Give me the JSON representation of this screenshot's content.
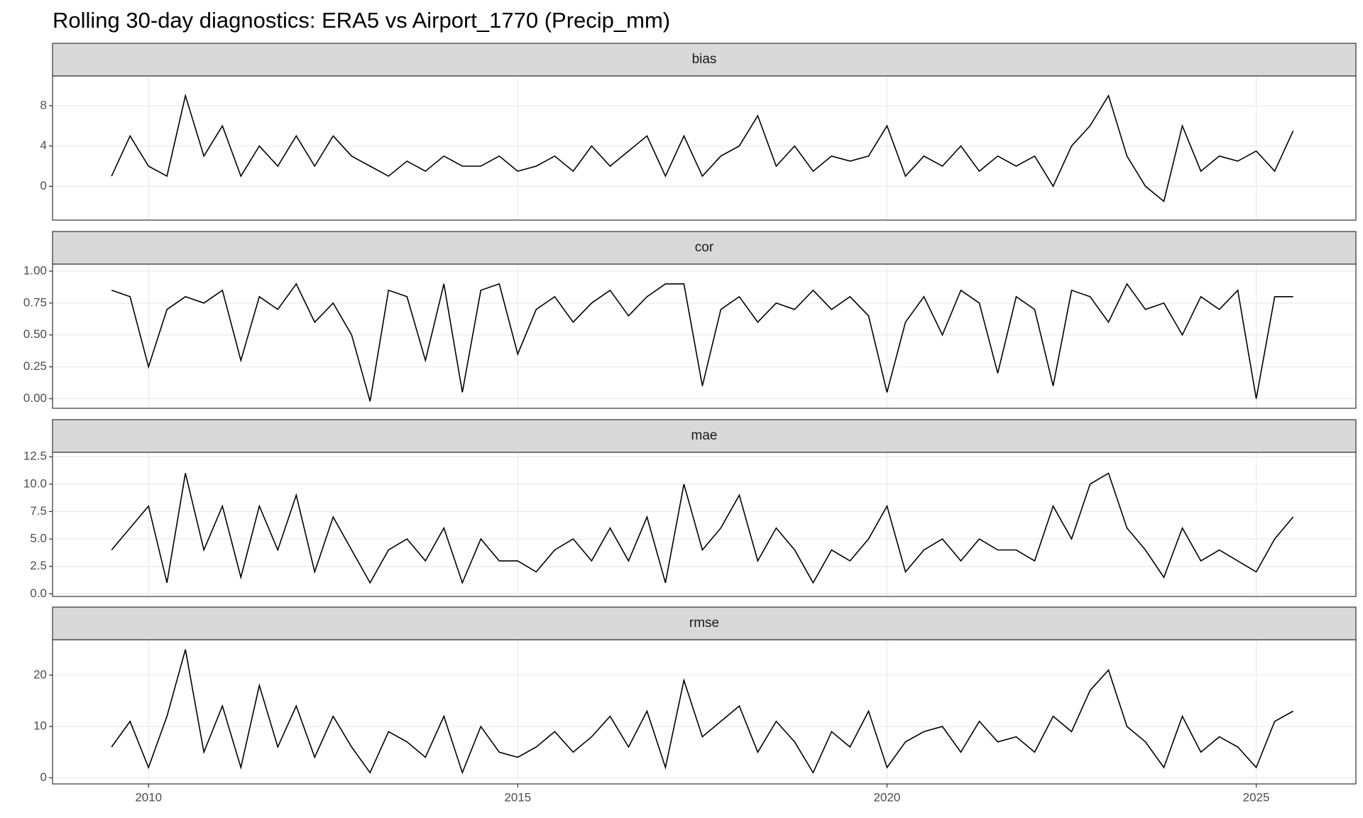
{
  "title": "Rolling 30-day diagnostics: ERA5 vs Airport_1770 (Precip_mm)",
  "chart_data": [
    {
      "type": "line",
      "title": "bias",
      "color": "#000000",
      "grid": true,
      "x": [
        2009.5,
        2009.75,
        2010,
        2010.25,
        2010.5,
        2010.75,
        2011,
        2011.25,
        2011.5,
        2011.75,
        2012,
        2012.25,
        2012.5,
        2012.75,
        2013,
        2013.25,
        2013.5,
        2013.75,
        2014,
        2014.25,
        2014.5,
        2014.75,
        2015,
        2015.25,
        2015.5,
        2015.75,
        2016,
        2016.25,
        2016.5,
        2016.75,
        2017,
        2017.25,
        2017.5,
        2017.75,
        2018,
        2018.25,
        2018.5,
        2018.75,
        2019,
        2019.25,
        2019.5,
        2019.75,
        2020,
        2020.25,
        2020.5,
        2020.75,
        2021,
        2021.25,
        2021.5,
        2021.75,
        2022,
        2022.25,
        2022.5,
        2022.75,
        2023,
        2023.25,
        2023.5,
        2023.75,
        2024,
        2024.25,
        2024.5,
        2024.75,
        2025,
        2025.25,
        2025.5
      ],
      "values": [
        1,
        5,
        2,
        1,
        9,
        3,
        6,
        1,
        4,
        2,
        5,
        2,
        5,
        3,
        2,
        1,
        2.5,
        1.5,
        3,
        2,
        2,
        3,
        1.5,
        2,
        3,
        1.5,
        4,
        2,
        3.5,
        5,
        1,
        5,
        1,
        3,
        4,
        7,
        2,
        4,
        1.5,
        3,
        2.5,
        3,
        6,
        1,
        3,
        2,
        4,
        1.5,
        3,
        2,
        3,
        0,
        4,
        6,
        9,
        3,
        0,
        -1.5,
        6,
        1.5,
        3,
        2.5,
        3.5,
        1.5,
        5.5
      ],
      "xlim": [
        2008.7,
        2026.35
      ],
      "xticks": [
        2010,
        2015,
        2020,
        2025
      ],
      "ylim": [
        -3.36,
        10.95
      ],
      "yticks": [
        0,
        4,
        8
      ]
    },
    {
      "type": "line",
      "title": "cor",
      "color": "#000000",
      "grid": true,
      "x": [
        2009.5,
        2009.75,
        2010,
        2010.25,
        2010.5,
        2010.75,
        2011,
        2011.25,
        2011.5,
        2011.75,
        2012,
        2012.25,
        2012.5,
        2012.75,
        2013,
        2013.25,
        2013.5,
        2013.75,
        2014,
        2014.25,
        2014.5,
        2014.75,
        2015,
        2015.25,
        2015.5,
        2015.75,
        2016,
        2016.25,
        2016.5,
        2016.75,
        2017,
        2017.25,
        2017.5,
        2017.75,
        2018,
        2018.25,
        2018.5,
        2018.75,
        2019,
        2019.25,
        2019.5,
        2019.75,
        2020,
        2020.25,
        2020.5,
        2020.75,
        2021,
        2021.25,
        2021.5,
        2021.75,
        2022,
        2022.25,
        2022.5,
        2022.75,
        2023,
        2023.25,
        2023.5,
        2023.75,
        2024,
        2024.25,
        2024.5,
        2024.75,
        2025,
        2025.25,
        2025.5
      ],
      "values": [
        0.85,
        0.8,
        0.25,
        0.7,
        0.8,
        0.75,
        0.85,
        0.3,
        0.8,
        0.7,
        0.9,
        0.6,
        0.75,
        0.5,
        -0.02,
        0.85,
        0.8,
        0.3,
        0.9,
        0.05,
        0.85,
        0.9,
        0.35,
        0.7,
        0.8,
        0.6,
        0.75,
        0.85,
        0.65,
        0.8,
        0.9,
        0.9,
        0.1,
        0.7,
        0.8,
        0.6,
        0.75,
        0.7,
        0.85,
        0.7,
        0.8,
        0.65,
        0.05,
        0.6,
        0.8,
        0.5,
        0.85,
        0.75,
        0.2,
        0.8,
        0.7,
        0.1,
        0.85,
        0.8,
        0.6,
        0.9,
        0.7,
        0.75,
        0.5,
        0.8,
        0.7,
        0.85,
        0.0,
        0.8,
        0.8
      ],
      "xlim": [
        2008.7,
        2026.35
      ],
      "xticks": [
        2010,
        2015,
        2020,
        2025
      ],
      "ylim": [
        -0.075,
        1.055
      ],
      "yticks": [
        {
          "value": 0,
          "label": "0.00"
        },
        0.25,
        {
          "value": 0.5,
          "label": "0.50"
        },
        0.75,
        {
          "value": 1,
          "label": "1.00"
        }
      ]
    },
    {
      "type": "line",
      "title": "mae",
      "color": "#000000",
      "grid": true,
      "x": [
        2009.5,
        2009.75,
        2010,
        2010.25,
        2010.5,
        2010.75,
        2011,
        2011.25,
        2011.5,
        2011.75,
        2012,
        2012.25,
        2012.5,
        2012.75,
        2013,
        2013.25,
        2013.5,
        2013.75,
        2014,
        2014.25,
        2014.5,
        2014.75,
        2015,
        2015.25,
        2015.5,
        2015.75,
        2016,
        2016.25,
        2016.5,
        2016.75,
        2017,
        2017.25,
        2017.5,
        2017.75,
        2018,
        2018.25,
        2018.5,
        2018.75,
        2019,
        2019.25,
        2019.5,
        2019.75,
        2020,
        2020.25,
        2020.5,
        2020.75,
        2021,
        2021.25,
        2021.5,
        2021.75,
        2022,
        2022.25,
        2022.5,
        2022.75,
        2023,
        2023.25,
        2023.5,
        2023.75,
        2024,
        2024.25,
        2024.5,
        2024.75,
        2025,
        2025.25,
        2025.5
      ],
      "values": [
        4,
        6,
        8,
        1,
        11,
        4,
        8,
        1.5,
        8,
        4,
        9,
        2,
        7,
        4,
        1,
        4,
        5,
        3,
        6,
        1,
        5,
        3,
        3,
        2,
        4,
        5,
        3,
        6,
        3,
        7,
        1,
        10,
        4,
        6,
        9,
        3,
        6,
        4,
        1,
        4,
        3,
        5,
        8,
        2,
        4,
        5,
        3,
        5,
        4,
        4,
        3,
        8,
        5,
        10,
        11,
        6,
        4,
        1.5,
        6,
        3,
        4,
        3,
        2,
        5,
        7
      ],
      "xlim": [
        2008.7,
        2026.35
      ],
      "xticks": [
        2010,
        2015,
        2020,
        2025
      ],
      "ylim": [
        -0.24,
        12.9
      ],
      "yticks": [
        {
          "value": 0,
          "label": "0.0"
        },
        2.5,
        {
          "value": 5,
          "label": "5.0"
        },
        7.5,
        {
          "value": 10,
          "label": "10.0"
        },
        12.5
      ]
    },
    {
      "type": "line",
      "title": "rmse",
      "color": "#000000",
      "grid": true,
      "x": [
        2009.5,
        2009.75,
        2010,
        2010.25,
        2010.5,
        2010.75,
        2011,
        2011.25,
        2011.5,
        2011.75,
        2012,
        2012.25,
        2012.5,
        2012.75,
        2013,
        2013.25,
        2013.5,
        2013.75,
        2014,
        2014.25,
        2014.5,
        2014.75,
        2015,
        2015.25,
        2015.5,
        2015.75,
        2016,
        2016.25,
        2016.5,
        2016.75,
        2017,
        2017.25,
        2017.5,
        2017.75,
        2018,
        2018.25,
        2018.5,
        2018.75,
        2019,
        2019.25,
        2019.5,
        2019.75,
        2020,
        2020.25,
        2020.5,
        2020.75,
        2021,
        2021.25,
        2021.5,
        2021.75,
        2022,
        2022.25,
        2022.5,
        2022.75,
        2023,
        2023.25,
        2023.5,
        2023.75,
        2024,
        2024.25,
        2024.5,
        2024.75,
        2025,
        2025.25,
        2025.5
      ],
      "values": [
        6,
        11,
        2,
        12,
        25,
        5,
        14,
        2,
        18,
        6,
        14,
        4,
        12,
        6,
        1,
        9,
        7,
        4,
        12,
        1,
        10,
        5,
        4,
        6,
        9,
        5,
        8,
        12,
        6,
        13,
        2,
        19,
        8,
        11,
        14,
        5,
        11,
        7,
        1,
        9,
        6,
        13,
        2,
        7,
        9,
        10,
        5,
        11,
        7,
        8,
        5,
        12,
        9,
        17,
        21,
        10,
        7,
        2,
        12,
        5,
        8,
        6,
        2,
        11,
        13
      ],
      "xlim": [
        2008.7,
        2026.35
      ],
      "xticks": [
        2010,
        2015,
        2020,
        2025
      ],
      "ylim": [
        -1.19,
        26.9
      ],
      "yticks": [
        0,
        10,
        20
      ]
    }
  ]
}
